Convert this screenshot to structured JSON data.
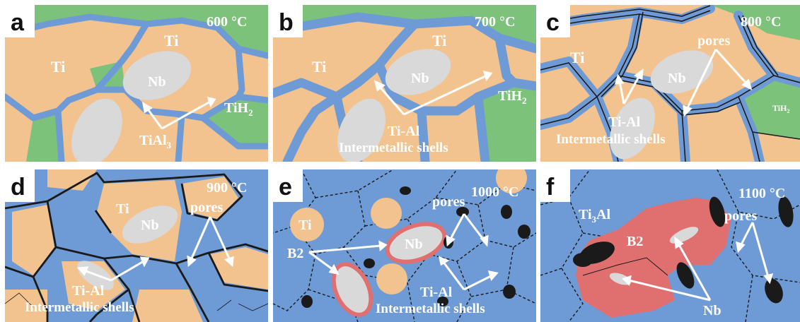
{
  "colors": {
    "ti_matrix": "#f2c38e",
    "intermetallic_shell": "#6e9bd6",
    "tih2": "#7dc27b",
    "nb": "#d9d9d9",
    "b2_phase": "#e07070",
    "pores": "#1a1a1a",
    "arrow": "#ffffff",
    "crack_lines": "#1a1a1a"
  },
  "panels": [
    {
      "letter": "a",
      "temperature": "600 °C",
      "labels": {
        "ti_1": "Ti",
        "ti_2": "Ti",
        "nb": "Nb",
        "tih2": "TiH",
        "tih2_sub": "2",
        "tial3": "TiAl",
        "tial3_sub": "3"
      }
    },
    {
      "letter": "b",
      "temperature": "700 °C",
      "labels": {
        "ti_1": "Ti",
        "ti_2": "Ti",
        "nb": "Nb",
        "tih2": "TiH",
        "tih2_sub": "2",
        "tial": "Ti-Al",
        "shells": "Intermetallic shells"
      }
    },
    {
      "letter": "c",
      "temperature": "800 °C",
      "labels": {
        "ti_1": "Ti",
        "nb": "Nb",
        "pores": "pores",
        "tih2": "TiH",
        "tih2_sub": "2",
        "tial": "Ti-Al",
        "shells": "Intermetallic shells"
      }
    },
    {
      "letter": "d",
      "temperature": "900 °C",
      "labels": {
        "ti_1": "Ti",
        "nb": "Nb",
        "pores": "pores",
        "tial": "Ti-Al",
        "shells": "Intermetallic shells"
      }
    },
    {
      "letter": "e",
      "temperature": "1000 °C",
      "labels": {
        "ti_1": "Ti",
        "nb": "Nb",
        "pores": "pores",
        "b2": "B2",
        "tial": "Ti-Al",
        "shells": "Intermetallic shells"
      }
    },
    {
      "letter": "f",
      "temperature": "1100 °C",
      "labels": {
        "ti3al": "Ti",
        "ti3al_sub": "3",
        "ti3al_tail": "Al",
        "b2": "B2",
        "pores": "pores",
        "nb": "Nb"
      }
    }
  ]
}
